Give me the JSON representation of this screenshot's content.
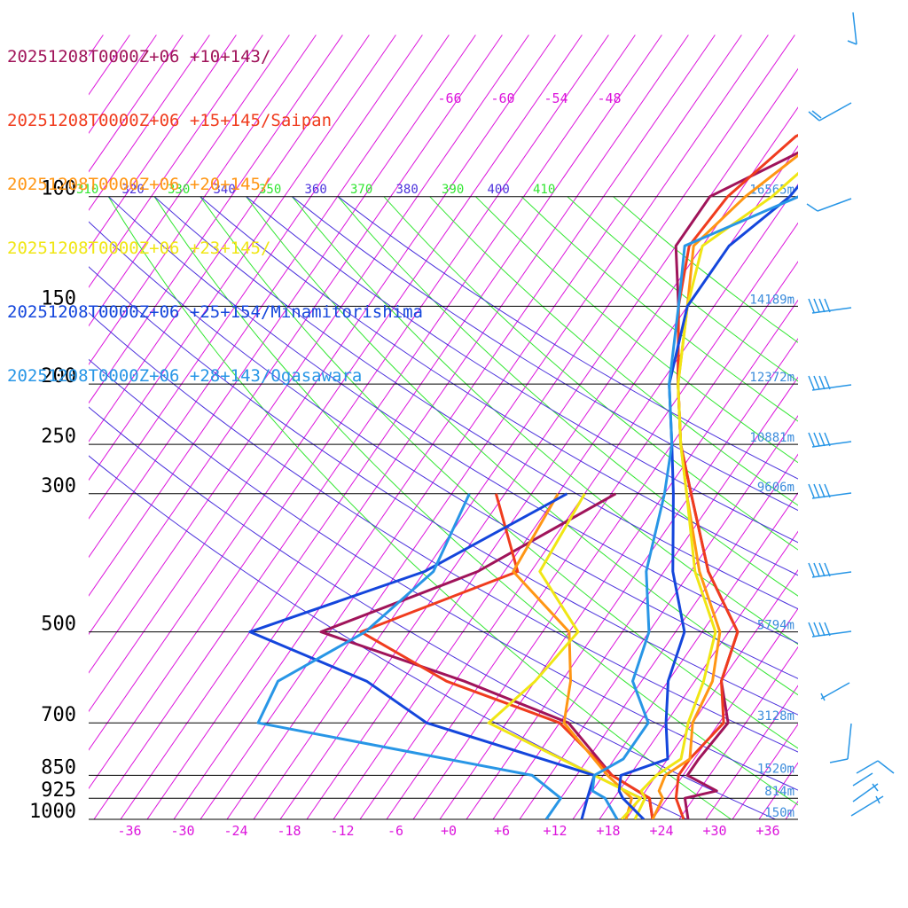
{
  "legend": [
    {
      "label": "20251208T0000Z+06 +10+143/",
      "color": "#a0145a"
    },
    {
      "label": "20251208T0000Z+06 +15+145/Saipan",
      "color": "#f03c1e"
    },
    {
      "label": "20251208T0000Z+06 +20+145/",
      "color": "#ff9614"
    },
    {
      "label": "20251208T0000Z+06 +23+145/",
      "color": "#f0e614"
    },
    {
      "label": "20251208T0000Z+06 +25+154/Minamitorishima",
      "color": "#1446dc"
    },
    {
      "label": "20251208T0000Z+06 +28+143/Ogasawara",
      "color": "#2896e6"
    }
  ],
  "chart_data": {
    "type": "line",
    "title": "",
    "xlabel": "",
    "ylabel": "",
    "x_ticks": [
      "-36",
      "-30",
      "-24",
      "-18",
      "-12",
      "-6",
      "+0",
      "+6",
      "+12",
      "+18",
      "+24",
      "+30",
      "+36"
    ],
    "upper_temp_ticks": [
      "-66",
      "-60",
      "-54",
      "-48"
    ],
    "pressure_levels": [
      {
        "p": 100,
        "label": "100",
        "height": "16565m"
      },
      {
        "p": 150,
        "label": "150",
        "height": "14189m"
      },
      {
        "p": 200,
        "label": "200",
        "height": "12372m"
      },
      {
        "p": 250,
        "label": "250",
        "height": "10881m"
      },
      {
        "p": 300,
        "label": "300",
        "height": "9606m"
      },
      {
        "p": 500,
        "label": "500",
        "height": "5794m"
      },
      {
        "p": 700,
        "label": "700",
        "height": "3128m"
      },
      {
        "p": 850,
        "label": "850",
        "height": "1520m"
      },
      {
        "p": 925,
        "label": "925",
        "height": "814m"
      },
      {
        "p": 1000,
        "label": "1000",
        "height": "150m"
      }
    ],
    "theta_labels": [
      "310",
      "320",
      "330",
      "340",
      "350",
      "360",
      "370",
      "380",
      "390",
      "400",
      "410"
    ],
    "colors": {
      "isotherm": "#dc14dc",
      "theta_e": "#32e632",
      "theta": "#4b32dc",
      "pressure": "#000000",
      "height": "#3c8cdc",
      "wind": "#2896e6"
    },
    "series": [
      {
        "name": "20251208T0000Z+06 +10+143/",
        "color": "#a0145a",
        "temperature": [
          [
            1000,
            27
          ],
          [
            925,
            25
          ],
          [
            900,
            28
          ],
          [
            850,
            23.5
          ],
          [
            800,
            23.5
          ],
          [
            700,
            24
          ],
          [
            600,
            20
          ],
          [
            500,
            18
          ],
          [
            400,
            10
          ],
          [
            300,
            2
          ],
          [
            250,
            -3
          ],
          [
            200,
            -8
          ],
          [
            150,
            -14
          ],
          [
            120,
            -19
          ],
          [
            100,
            -19
          ],
          [
            80,
            -10
          ],
          [
            60,
            2
          ],
          [
            50,
            16
          ]
        ],
        "dewpoint": [
          [
            1000,
            23
          ],
          [
            925,
            21
          ],
          [
            850,
            15
          ],
          [
            700,
            6
          ],
          [
            600,
            -9
          ],
          [
            500,
            -29
          ],
          [
            400,
            -16
          ],
          [
            300,
            -6.5
          ]
        ]
      },
      {
        "name": "20251208T0000Z+06 +15+145/Saipan",
        "color": "#f03c1e",
        "temperature": [
          [
            1000,
            26.5
          ],
          [
            925,
            24
          ],
          [
            850,
            22.5
          ],
          [
            800,
            22.5
          ],
          [
            700,
            23.5
          ],
          [
            600,
            20
          ],
          [
            500,
            18
          ],
          [
            400,
            10
          ],
          [
            300,
            2
          ],
          [
            250,
            -3
          ],
          [
            200,
            -8
          ],
          [
            150,
            -14
          ],
          [
            120,
            -17.5
          ],
          [
            100,
            -17
          ],
          [
            80,
            -14
          ],
          [
            60,
            0
          ],
          [
            50,
            16
          ]
        ],
        "dewpoint": [
          [
            1000,
            23
          ],
          [
            925,
            21
          ],
          [
            850,
            15
          ],
          [
            700,
            5
          ],
          [
            600,
            -11
          ],
          [
            500,
            -24.5
          ],
          [
            400,
            -11.5
          ],
          [
            300,
            -20
          ]
        ]
      },
      {
        "name": "20251208T0000Z+06 +20+145/",
        "color": "#ff9614",
        "temperature": [
          [
            1000,
            23
          ],
          [
            925,
            22.5
          ],
          [
            900,
            21.5
          ],
          [
            850,
            21
          ],
          [
            800,
            22.5
          ],
          [
            700,
            20
          ],
          [
            600,
            19
          ],
          [
            500,
            16
          ],
          [
            400,
            9
          ],
          [
            300,
            1.5
          ],
          [
            250,
            -3
          ],
          [
            200,
            -8
          ],
          [
            150,
            -13
          ],
          [
            120,
            -17
          ],
          [
            100,
            -15
          ],
          [
            80,
            -11
          ],
          [
            60,
            0
          ],
          [
            50,
            16
          ]
        ],
        "dewpoint": [
          [
            1000,
            20
          ],
          [
            925,
            19
          ],
          [
            850,
            14.5
          ],
          [
            700,
            5.5
          ],
          [
            600,
            3
          ],
          [
            500,
            -1
          ],
          [
            400,
            -12
          ],
          [
            300,
            -13
          ]
        ]
      },
      {
        "name": "20251208T0000Z+06 +23+145/",
        "color": "#f0e614",
        "temperature": [
          [
            1000,
            21
          ],
          [
            925,
            20.5
          ],
          [
            900,
            19.5
          ],
          [
            850,
            20
          ],
          [
            800,
            21.5
          ],
          [
            700,
            19.5
          ],
          [
            600,
            18
          ],
          [
            500,
            15.5
          ],
          [
            400,
            8.5
          ],
          [
            300,
            1.5
          ],
          [
            250,
            -3
          ],
          [
            200,
            -8
          ],
          [
            150,
            -13
          ],
          [
            120,
            -16
          ],
          [
            100,
            -12
          ],
          [
            80,
            -9
          ],
          [
            60,
            1
          ],
          [
            50,
            16
          ]
        ],
        "dewpoint": [
          [
            1000,
            19.5
          ],
          [
            925,
            20
          ],
          [
            850,
            13
          ],
          [
            700,
            -3
          ],
          [
            600,
            -1
          ],
          [
            500,
            0
          ],
          [
            400,
            -9
          ],
          [
            300,
            -10
          ]
        ]
      },
      {
        "name": "20251208T0000Z+06 +25+154/Minamitorishima",
        "color": "#1446dc",
        "temperature": [
          [
            1000,
            22
          ],
          [
            925,
            18
          ],
          [
            900,
            17
          ],
          [
            850,
            16
          ],
          [
            800,
            20
          ],
          [
            700,
            17
          ],
          [
            600,
            14
          ],
          [
            500,
            12
          ],
          [
            400,
            6
          ],
          [
            300,
            0
          ],
          [
            250,
            -4
          ],
          [
            200,
            -9
          ],
          [
            150,
            -13
          ],
          [
            120,
            -13
          ],
          [
            100,
            -10
          ],
          [
            80,
            -9
          ],
          [
            60,
            2
          ],
          [
            50,
            16
          ]
        ],
        "dewpoint": [
          [
            1000,
            15
          ],
          [
            925,
            14
          ],
          [
            850,
            13
          ],
          [
            700,
            -10
          ],
          [
            600,
            -20
          ],
          [
            500,
            -37
          ],
          [
            400,
            -22
          ],
          [
            300,
            -12
          ]
        ]
      },
      {
        "name": "20251208T0000Z+06 +28+143/Ogasawara",
        "color": "#2896e6",
        "temperature": [
          [
            1000,
            19
          ],
          [
            925,
            16
          ],
          [
            900,
            14
          ],
          [
            850,
            13
          ],
          [
            800,
            15
          ],
          [
            700,
            15
          ],
          [
            600,
            10
          ],
          [
            500,
            8
          ],
          [
            400,
            3
          ],
          [
            300,
            -1
          ],
          [
            250,
            -4
          ],
          [
            200,
            -9
          ],
          [
            150,
            -14
          ],
          [
            120,
            -18
          ],
          [
            100,
            -9
          ],
          [
            80,
            -3
          ],
          [
            60,
            4
          ],
          [
            50,
            16
          ]
        ],
        "dewpoint": [
          [
            1000,
            11
          ],
          [
            925,
            11
          ],
          [
            850,
            6
          ],
          [
            700,
            -29
          ],
          [
            600,
            -30
          ],
          [
            500,
            -24
          ],
          [
            400,
            -21
          ],
          [
            300,
            -23
          ]
        ]
      }
    ]
  }
}
